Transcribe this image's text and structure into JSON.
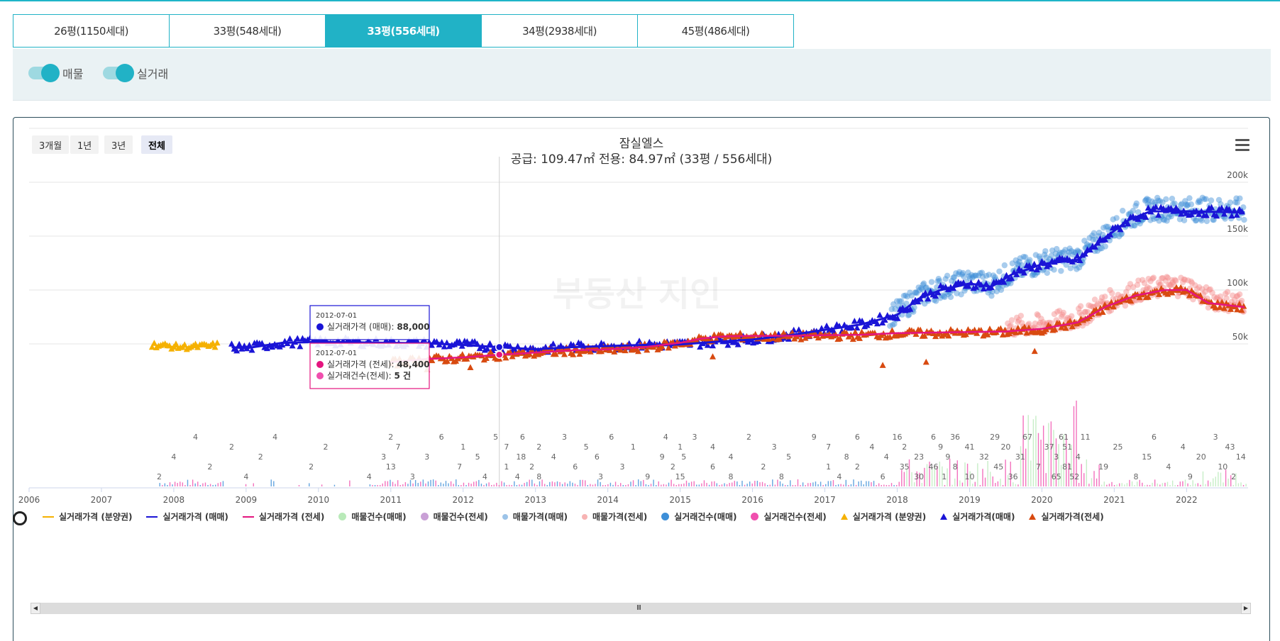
{
  "tabs": [
    {
      "label": "26평(1150세대)",
      "active": false
    },
    {
      "label": "33평(548세대)",
      "active": false
    },
    {
      "label": "33평(556세대)",
      "active": true
    },
    {
      "label": "34평(2938세대)",
      "active": false
    },
    {
      "label": "45평(486세대)",
      "active": false
    }
  ],
  "filters": {
    "listing_label": "매물",
    "deal_label": "실거래",
    "listing_on": true,
    "deal_on": true
  },
  "range_buttons": [
    {
      "label": "3개월",
      "active": false
    },
    {
      "label": "1년",
      "active": false
    },
    {
      "label": "3년",
      "active": false
    },
    {
      "label": "전체",
      "active": true
    }
  ],
  "chart": {
    "title": "잠실엘스",
    "subtitle": "공급: 109.47㎡ 전용: 84.97㎡ (33평 / 556세대)",
    "watermark": "부동산 지인",
    "scrollbar_grip": "III",
    "tooltip_top": {
      "date": "2012-07-01",
      "label": "실거래가격 (매매): ",
      "value": "88,000"
    },
    "tooltip_bottom": {
      "date": "2012-07-01",
      "rows": [
        {
          "label": "실거래가격 (전세): ",
          "value": "48,400"
        },
        {
          "label": "실거래건수(전세): ",
          "value": "5 건"
        }
      ]
    }
  },
  "colors": {
    "accent": "#21b2c6",
    "sale": "#1a14d6",
    "jeonse": "#e4157f",
    "jeonse_tri": "#d84a10",
    "presale": "#f5b100",
    "sale_listing": "#3d8fd8",
    "jeonse_listing": "#f58a8a"
  },
  "chart_data": {
    "type": "line",
    "x_range": [
      "2006",
      "2022"
    ],
    "x_ticks": [
      "2006",
      "2007",
      "2008",
      "2009",
      "2010",
      "2011",
      "2012",
      "2013",
      "2014",
      "2015",
      "2016",
      "2017",
      "2018",
      "2019",
      "2020",
      "2021",
      "2022"
    ],
    "y_ticks": [
      "50k",
      "100k",
      "150k",
      "200k"
    ],
    "series": [
      {
        "name": "실거래가격 (분양권)",
        "points": [
          [
            2007.7,
            49000
          ],
          [
            2007.9,
            48000
          ],
          [
            2008.1,
            47000
          ],
          [
            2008.3,
            47500
          ],
          [
            2008.5,
            48000
          ],
          [
            2008.6,
            49000
          ]
        ]
      },
      {
        "name": "실거래가격 (매매)",
        "points": [
          [
            2008.8,
            47000
          ],
          [
            2009.0,
            46000
          ],
          [
            2009.2,
            48000
          ],
          [
            2009.5,
            51000
          ],
          [
            2010.0,
            52000
          ],
          [
            2010.5,
            51500
          ],
          [
            2011.0,
            51000
          ],
          [
            2011.5,
            50500
          ],
          [
            2012.0,
            49000
          ],
          [
            2012.5,
            47000
          ],
          [
            2013.0,
            45000
          ],
          [
            2013.5,
            47000
          ],
          [
            2014.0,
            48000
          ],
          [
            2014.5,
            49000
          ],
          [
            2015.0,
            49500
          ],
          [
            2015.5,
            52000
          ],
          [
            2016.0,
            54000
          ],
          [
            2016.5,
            58000
          ],
          [
            2017.0,
            63000
          ],
          [
            2017.5,
            68000
          ],
          [
            2018.0,
            77000
          ],
          [
            2018.3,
            92000
          ],
          [
            2018.6,
            100000
          ],
          [
            2019.0,
            106000
          ],
          [
            2019.3,
            103000
          ],
          [
            2019.6,
            115000
          ],
          [
            2019.8,
            119000
          ],
          [
            2020.0,
            124000
          ],
          [
            2020.5,
            128000
          ],
          [
            2020.9,
            150000
          ],
          [
            2021.2,
            165000
          ],
          [
            2021.5,
            173000
          ],
          [
            2022.0,
            173000
          ],
          [
            2022.8,
            172000
          ]
        ]
      },
      {
        "name": "실거래가격 (전세)",
        "points": [
          [
            2011.0,
            33000
          ],
          [
            2011.5,
            36000
          ],
          [
            2012.0,
            37500
          ],
          [
            2012.5,
            40000
          ],
          [
            2013.0,
            42000
          ],
          [
            2013.5,
            44000
          ],
          [
            2014.0,
            45000
          ],
          [
            2014.5,
            47000
          ],
          [
            2015.0,
            51000
          ],
          [
            2015.3,
            55000
          ],
          [
            2015.6,
            57000
          ],
          [
            2016.0,
            57500
          ],
          [
            2016.5,
            57500
          ],
          [
            2017.0,
            58000
          ],
          [
            2017.5,
            58500
          ],
          [
            2018.0,
            60000
          ],
          [
            2018.5,
            60500
          ],
          [
            2019.0,
            61000
          ],
          [
            2019.5,
            61500
          ],
          [
            2020.0,
            64000
          ],
          [
            2020.5,
            70000
          ],
          [
            2020.9,
            85000
          ],
          [
            2021.3,
            95000
          ],
          [
            2021.7,
            100000
          ],
          [
            2022.0,
            100000
          ],
          [
            2022.3,
            88000
          ],
          [
            2022.8,
            84000
          ]
        ]
      }
    ],
    "bars_note": "매물건수/실거래건수 shown as small bars along the bottom",
    "count_labels": [
      {
        "x": 2007.8,
        "v": "2"
      },
      {
        "x": 2008.0,
        "v": "4"
      },
      {
        "x": 2008.3,
        "v": "4"
      },
      {
        "x": 2008.5,
        "v": "2"
      },
      {
        "x": 2008.8,
        "v": "2"
      },
      {
        "x": 2009.0,
        "v": "4"
      },
      {
        "x": 2009.2,
        "v": "2"
      },
      {
        "x": 2009.4,
        "v": "4"
      },
      {
        "x": 2009.9,
        "v": "2"
      },
      {
        "x": 2010.1,
        "v": "2"
      },
      {
        "x": 2010.7,
        "v": "4"
      },
      {
        "x": 2010.9,
        "v": "3"
      },
      {
        "x": 2011.0,
        "v": "2"
      },
      {
        "x": 2011.0,
        "v": "13"
      },
      {
        "x": 2011.1,
        "v": "7"
      },
      {
        "x": 2011.3,
        "v": "3"
      },
      {
        "x": 2011.5,
        "v": "3"
      },
      {
        "x": 2011.7,
        "v": "6"
      },
      {
        "x": 2011.95,
        "v": "7"
      },
      {
        "x": 2012.0,
        "v": "1"
      },
      {
        "x": 2012.3,
        "v": "4"
      },
      {
        "x": 2012.2,
        "v": "5"
      },
      {
        "x": 2012.45,
        "v": "5"
      },
      {
        "x": 2012.6,
        "v": "1"
      },
      {
        "x": 2012.6,
        "v": "7"
      },
      {
        "x": 2012.75,
        "v": "4"
      },
      {
        "x": 2012.8,
        "v": "18"
      },
      {
        "x": 2012.82,
        "v": "6"
      },
      {
        "x": 2012.95,
        "v": "2"
      },
      {
        "x": 2013.05,
        "v": "2"
      },
      {
        "x": 2013.05,
        "v": "8"
      },
      {
        "x": 2013.25,
        "v": "4"
      },
      {
        "x": 2013.4,
        "v": "3"
      },
      {
        "x": 2013.55,
        "v": "6"
      },
      {
        "x": 2013.7,
        "v": "5"
      },
      {
        "x": 2013.9,
        "v": "3"
      },
      {
        "x": 2013.85,
        "v": "6"
      },
      {
        "x": 2014.05,
        "v": "6"
      },
      {
        "x": 2014.2,
        "v": "3"
      },
      {
        "x": 2014.35,
        "v": "1"
      },
      {
        "x": 2014.55,
        "v": "9"
      },
      {
        "x": 2014.75,
        "v": "9"
      },
      {
        "x": 2014.8,
        "v": "4"
      },
      {
        "x": 2014.9,
        "v": "2"
      },
      {
        "x": 2015.0,
        "v": "1"
      },
      {
        "x": 2015.0,
        "v": "15"
      },
      {
        "x": 2015.05,
        "v": "5"
      },
      {
        "x": 2015.2,
        "v": "3"
      },
      {
        "x": 2015.45,
        "v": "6"
      },
      {
        "x": 2015.45,
        "v": "4"
      },
      {
        "x": 2015.7,
        "v": "8"
      },
      {
        "x": 2015.7,
        "v": "4"
      },
      {
        "x": 2015.95,
        "v": "2"
      },
      {
        "x": 2016.15,
        "v": "2"
      },
      {
        "x": 2016.3,
        "v": "3"
      },
      {
        "x": 2016.4,
        "v": "8"
      },
      {
        "x": 2016.5,
        "v": "5"
      },
      {
        "x": 2016.85,
        "v": "9"
      },
      {
        "x": 2017.05,
        "v": "1"
      },
      {
        "x": 2017.05,
        "v": "7"
      },
      {
        "x": 2017.2,
        "v": "4"
      },
      {
        "x": 2017.3,
        "v": "8"
      },
      {
        "x": 2017.45,
        "v": "6"
      },
      {
        "x": 2017.45,
        "v": "2"
      },
      {
        "x": 2017.65,
        "v": "4"
      },
      {
        "x": 2017.8,
        "v": "6"
      },
      {
        "x": 2017.85,
        "v": "4"
      },
      {
        "x": 2018.0,
        "v": "16"
      },
      {
        "x": 2018.1,
        "v": "35"
      },
      {
        "x": 2018.1,
        "v": "2"
      },
      {
        "x": 2018.3,
        "v": "30"
      },
      {
        "x": 2018.3,
        "v": "23"
      },
      {
        "x": 2018.5,
        "v": "6"
      },
      {
        "x": 2018.5,
        "v": "46"
      },
      {
        "x": 2018.6,
        "v": "9"
      },
      {
        "x": 2018.65,
        "v": "1"
      },
      {
        "x": 2018.7,
        "v": "9"
      },
      {
        "x": 2018.8,
        "v": "36"
      },
      {
        "x": 2018.8,
        "v": "8"
      },
      {
        "x": 2019.0,
        "v": "41"
      },
      {
        "x": 2019.0,
        "v": "10"
      },
      {
        "x": 2019.2,
        "v": "32"
      },
      {
        "x": 2019.35,
        "v": "29"
      },
      {
        "x": 2019.4,
        "v": "45"
      },
      {
        "x": 2019.5,
        "v": "20"
      },
      {
        "x": 2019.6,
        "v": "36"
      },
      {
        "x": 2019.7,
        "v": "31"
      },
      {
        "x": 2019.8,
        "v": "67"
      },
      {
        "x": 2019.95,
        "v": "7"
      },
      {
        "x": 2020.1,
        "v": "37"
      },
      {
        "x": 2020.2,
        "v": "65"
      },
      {
        "x": 2020.2,
        "v": "3"
      },
      {
        "x": 2020.3,
        "v": "61"
      },
      {
        "x": 2020.35,
        "v": "81"
      },
      {
        "x": 2020.35,
        "v": "51"
      },
      {
        "x": 2020.45,
        "v": "52"
      },
      {
        "x": 2020.5,
        "v": "4"
      },
      {
        "x": 2020.6,
        "v": "11"
      },
      {
        "x": 2020.85,
        "v": "19"
      },
      {
        "x": 2021.05,
        "v": "25"
      },
      {
        "x": 2021.3,
        "v": "8"
      },
      {
        "x": 2021.45,
        "v": "15"
      },
      {
        "x": 2021.55,
        "v": "6"
      },
      {
        "x": 2021.75,
        "v": "4"
      },
      {
        "x": 2021.95,
        "v": "4"
      },
      {
        "x": 2022.05,
        "v": "9"
      },
      {
        "x": 2022.2,
        "v": "20"
      },
      {
        "x": 2022.4,
        "v": "3"
      },
      {
        "x": 2022.5,
        "v": "10"
      },
      {
        "x": 2022.6,
        "v": "43"
      },
      {
        "x": 2022.65,
        "v": "2"
      },
      {
        "x": 2022.75,
        "v": "14"
      }
    ]
  },
  "legend": [
    {
      "label": "실거래가격 (분양권)",
      "symbol": "line",
      "color": "#f5b100"
    },
    {
      "label": "실거래가격 (매매)",
      "symbol": "line",
      "color": "#1a14d6"
    },
    {
      "label": "실거래가격 (전세)",
      "symbol": "line",
      "color": "#e4157f"
    },
    {
      "label": "매물건수(매매)",
      "symbol": "circle",
      "color": "#b9eab9"
    },
    {
      "label": "매물건수(전세)",
      "symbol": "circle",
      "color": "#c9a0d6"
    },
    {
      "label": "매물가격(매매)",
      "symbol": "dot",
      "color": "#9cc3e8"
    },
    {
      "label": "매물가격(전세)",
      "symbol": "dot",
      "color": "#f7b3b3"
    },
    {
      "label": "실거래건수(매매)",
      "symbol": "circle",
      "color": "#3d8fd8"
    },
    {
      "label": "실거래건수(전세)",
      "symbol": "circle",
      "color": "#f04fae"
    },
    {
      "label": "실거래가격 (분양권)",
      "symbol": "tri",
      "color": "#f5b100"
    },
    {
      "label": "실거래가격(매매)",
      "symbol": "tri",
      "color": "#1a14d6"
    },
    {
      "label": "실거래가격(전세)",
      "symbol": "tri",
      "color": "#d84a10"
    }
  ]
}
